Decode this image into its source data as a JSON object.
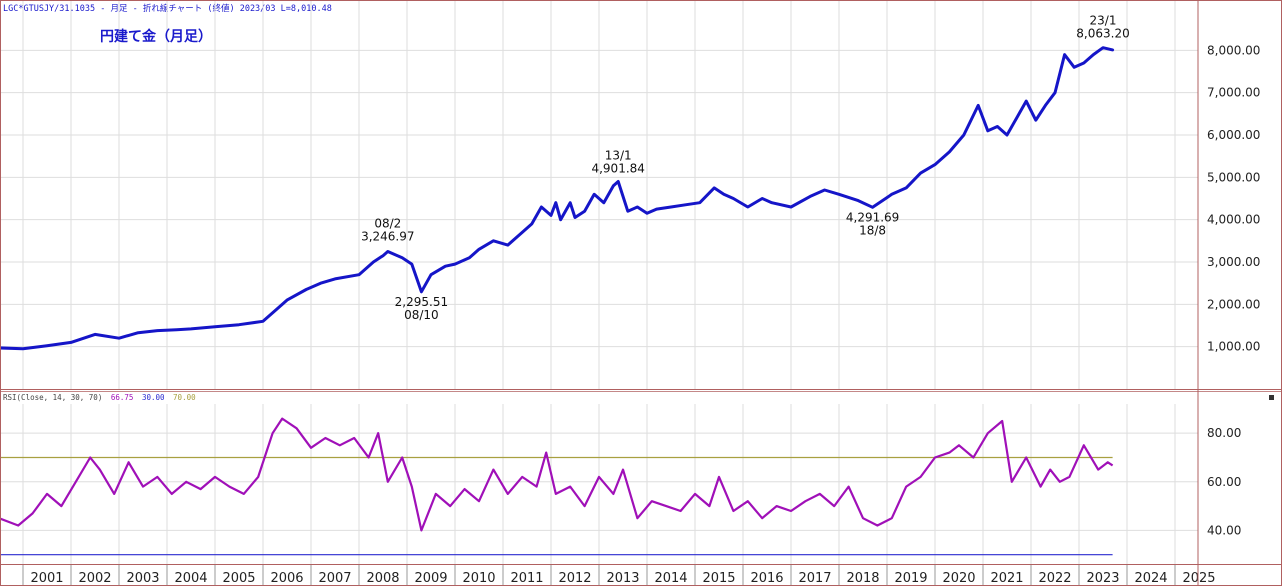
{
  "header": {
    "title": "LGC*GTUSJY/31.1035 - 月足 - 折れ線チャート (終値)  2023/03  L=8,010.48"
  },
  "colors": {
    "price_line": "#1515c8",
    "rsi_line": "#a010b8",
    "upper_band": "#a8a040",
    "lower_band": "#2b2bd0",
    "frame": "#b06060",
    "grid": "#dedede",
    "label_blue": "#1a1acc"
  },
  "rsi_panel": {
    "header_prefix": "RSI(Close, 14, 30, 70)",
    "value": "66.75",
    "lower": "30.00",
    "upper": "70.00",
    "collapse_icon": "small-square-icon"
  },
  "chart_data": [
    {
      "type": "line",
      "title": "円建て金（月足）",
      "ylim": [
        0,
        9000
      ],
      "y_ticks": [
        "1,000.00",
        "2,000.00",
        "3,000.00",
        "4,000.00",
        "5,000.00",
        "6,000.00",
        "7,000.00",
        "8,000.00"
      ],
      "y_tick_values": [
        1000,
        2000,
        3000,
        4000,
        5000,
        6000,
        7000,
        8000
      ],
      "x_range": [
        2000.0,
        2026.0
      ],
      "grid": true,
      "series": [
        {
          "x": [
            2000.0,
            2000.5,
            2001.0,
            2001.5,
            2002.0,
            2002.5,
            2002.9,
            2003.3,
            2003.7,
            2004.0,
            2004.5,
            2005.0,
            2005.5,
            2005.8,
            2006.0,
            2006.4,
            2006.7,
            2007.0,
            2007.5,
            2007.8,
            2008.0,
            2008.1,
            2008.4,
            2008.6,
            2008.8,
            2009.0,
            2009.3,
            2009.5,
            2009.8,
            2010.0,
            2010.3,
            2010.6,
            2010.9,
            2011.1,
            2011.3,
            2011.5,
            2011.6,
            2011.7,
            2011.9,
            2012.0,
            2012.2,
            2012.4,
            2012.6,
            2012.8,
            2012.9,
            2013.1,
            2013.3,
            2013.5,
            2013.7,
            2014.0,
            2014.3,
            2014.6,
            2014.9,
            2015.1,
            2015.3,
            2015.6,
            2015.9,
            2016.1,
            2016.5,
            2016.9,
            2017.2,
            2017.5,
            2017.9,
            2018.2,
            2018.6,
            2018.9,
            2019.2,
            2019.5,
            2019.8,
            2020.1,
            2020.4,
            2020.6,
            2020.8,
            2021.0,
            2021.2,
            2021.4,
            2021.6,
            2021.8,
            2022.0,
            2022.2,
            2022.4,
            2022.6,
            2022.8,
            2023.0,
            2023.2
          ],
          "values": [
            970,
            950,
            1020,
            1100,
            1290,
            1200,
            1330,
            1380,
            1400,
            1420,
            1470,
            1520,
            1600,
            1900,
            2100,
            2350,
            2500,
            2600,
            2700,
            3000,
            3150,
            3247,
            3100,
            2950,
            2296,
            2700,
            2900,
            2950,
            3100,
            3300,
            3500,
            3400,
            3700,
            3900,
            4300,
            4100,
            4400,
            4000,
            4400,
            4050,
            4200,
            4600,
            4400,
            4800,
            4902,
            4200,
            4300,
            4150,
            4250,
            4300,
            4350,
            4400,
            4750,
            4600,
            4500,
            4300,
            4500,
            4400,
            4300,
            4550,
            4700,
            4600,
            4450,
            4292,
            4600,
            4750,
            5100,
            5300,
            5600,
            6000,
            6700,
            6100,
            6200,
            6000,
            6400,
            6800,
            6350,
            6700,
            7000,
            7900,
            7600,
            7700,
            7900,
            8063,
            8010
          ]
        }
      ],
      "annotations": [
        {
          "line1": "08/2",
          "line2": "3,246.97"
        },
        {
          "line1": "2,295.51",
          "line2": "08/10"
        },
        {
          "line1": "13/1",
          "line2": "4,901.84"
        },
        {
          "line1": "4,291.69",
          "line2": "18/8"
        },
        {
          "line1": "23/1",
          "line2": "8,063.20"
        }
      ]
    },
    {
      "type": "line",
      "title": "",
      "ylim": [
        27,
        92
      ],
      "y_ticks": [
        "40.00",
        "60.00",
        "80.00"
      ],
      "y_tick_values": [
        40,
        60,
        80
      ],
      "bands": [
        30,
        70
      ],
      "x_range": [
        2000.0,
        2026.0
      ],
      "x_ticks": [
        "2001",
        "2002",
        "2003",
        "2004",
        "2005",
        "2006",
        "2007",
        "2008",
        "2009",
        "2010",
        "2011",
        "2012",
        "2013",
        "2014",
        "2015",
        "2016",
        "2017",
        "2018",
        "2019",
        "2020",
        "2021",
        "2022",
        "2023",
        "2024",
        "2025"
      ],
      "x_tick_values": [
        2001,
        2002,
        2003,
        2004,
        2005,
        2006,
        2007,
        2008,
        2009,
        2010,
        2011,
        2012,
        2013,
        2014,
        2015,
        2016,
        2017,
        2018,
        2019,
        2020,
        2021,
        2022,
        2023,
        2024,
        2025
      ],
      "series": [
        {
          "x": [
            2000.0,
            2000.4,
            2000.7,
            2001.0,
            2001.3,
            2001.6,
            2001.9,
            2002.1,
            2002.4,
            2002.7,
            2003.0,
            2003.3,
            2003.6,
            2003.9,
            2004.2,
            2004.5,
            2004.8,
            2005.1,
            2005.4,
            2005.7,
            2005.9,
            2006.2,
            2006.5,
            2006.8,
            2007.1,
            2007.4,
            2007.7,
            2007.9,
            2008.1,
            2008.4,
            2008.6,
            2008.8,
            2009.1,
            2009.4,
            2009.7,
            2010.0,
            2010.3,
            2010.6,
            2010.9,
            2011.2,
            2011.4,
            2011.6,
            2011.9,
            2012.2,
            2012.5,
            2012.8,
            2013.0,
            2013.3,
            2013.6,
            2013.9,
            2014.2,
            2014.5,
            2014.8,
            2015.0,
            2015.3,
            2015.6,
            2015.9,
            2016.2,
            2016.5,
            2016.8,
            2017.1,
            2017.4,
            2017.7,
            2018.0,
            2018.3,
            2018.6,
            2018.9,
            2019.2,
            2019.5,
            2019.8,
            2020.0,
            2020.3,
            2020.6,
            2020.9,
            2021.1,
            2021.4,
            2021.7,
            2021.9,
            2022.1,
            2022.3,
            2022.6,
            2022.9,
            2023.1,
            2023.2
          ],
          "values": [
            45,
            42,
            47,
            55,
            50,
            60,
            70,
            65,
            55,
            68,
            58,
            62,
            55,
            60,
            57,
            62,
            58,
            55,
            62,
            80,
            86,
            82,
            74,
            78,
            75,
            78,
            70,
            80,
            60,
            70,
            58,
            40,
            55,
            50,
            57,
            52,
            65,
            55,
            62,
            58,
            72,
            55,
            58,
            50,
            62,
            55,
            65,
            45,
            52,
            50,
            48,
            55,
            50,
            62,
            48,
            52,
            45,
            50,
            48,
            52,
            55,
            50,
            58,
            45,
            42,
            45,
            58,
            62,
            70,
            72,
            75,
            70,
            80,
            85,
            60,
            70,
            58,
            65,
            60,
            62,
            75,
            65,
            68,
            66.75
          ]
        }
      ]
    }
  ]
}
